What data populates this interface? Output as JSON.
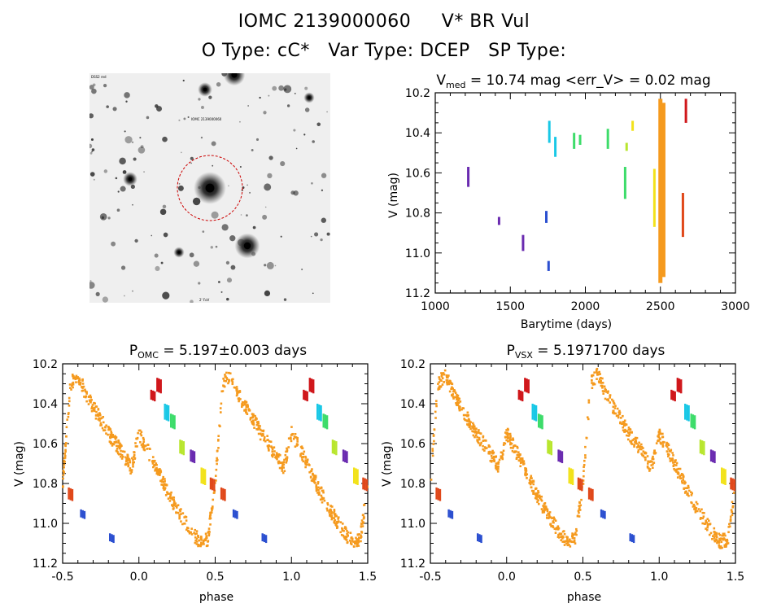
{
  "header": {
    "title_line1": "IOMC 2139000060     V* BR Vul",
    "title_line2": "O Type: cC*   Var Type: DCEP   SP Type:"
  },
  "finder_chart": {
    "label_top_left": "DSS2 red",
    "label_top": "IOMC 2139000060",
    "label_bottom": "2' FoV",
    "circle_color": "#cc0000"
  },
  "colors": {
    "purple": "#6a2bb0",
    "blue": "#2b4fd0",
    "cyan": "#19c8e6",
    "green": "#3ddc6a",
    "yellow_green": "#b8e62e",
    "yellow": "#f2e21b",
    "orange": "#f59a1e",
    "red_orange": "#e0481a",
    "red": "#d0171b"
  },
  "chart_data": [
    {
      "id": "light_curve",
      "type": "scatter",
      "title_main": "V",
      "title_sub": "med",
      "title_rest": " = 10.74 mag <err_V> = 0.02 mag",
      "xlabel": "Barytime (days)",
      "ylabel": "V (mag)",
      "xlim": [
        1000,
        3000
      ],
      "ylim": [
        11.2,
        10.2
      ],
      "xticks": [
        1000,
        1500,
        2000,
        2500,
        3000
      ],
      "xtick_labels": [
        "1000",
        "1500",
        "2000",
        "2500",
        "3000"
      ],
      "yticks": [
        10.2,
        10.4,
        10.6,
        10.8,
        11.0,
        11.2
      ],
      "ytick_labels": [
        "10.2",
        "10.4",
        "10.6",
        "10.8",
        "11.0",
        "11.2"
      ],
      "segments": [
        {
          "x": 1220,
          "y": [
            10.57,
            10.67
          ],
          "color": "purple"
        },
        {
          "x": 1425,
          "y": [
            10.82,
            10.86
          ],
          "color": "purple"
        },
        {
          "x": 1585,
          "y": [
            10.91,
            10.99
          ],
          "color": "purple"
        },
        {
          "x": 1740,
          "y": [
            10.79,
            10.85
          ],
          "color": "blue"
        },
        {
          "x": 1755,
          "y": [
            11.04,
            11.09
          ],
          "color": "blue"
        },
        {
          "x": 1760,
          "y": [
            10.34,
            10.45
          ],
          "color": "cyan"
        },
        {
          "x": 1800,
          "y": [
            10.42,
            10.52
          ],
          "color": "cyan"
        },
        {
          "x": 1925,
          "y": [
            10.4,
            10.48
          ],
          "color": "green"
        },
        {
          "x": 1965,
          "y": [
            10.41,
            10.46
          ],
          "color": "green"
        },
        {
          "x": 2150,
          "y": [
            10.38,
            10.48
          ],
          "color": "green"
        },
        {
          "x": 2265,
          "y": [
            10.57,
            10.73
          ],
          "color": "green"
        },
        {
          "x": 2275,
          "y": [
            10.45,
            10.49
          ],
          "color": "yellow_green"
        },
        {
          "x": 2315,
          "y": [
            10.34,
            10.39
          ],
          "color": "yellow"
        },
        {
          "x": 2460,
          "y": [
            10.58,
            10.87
          ],
          "color": "yellow"
        },
        {
          "x": 2500,
          "y": [
            10.23,
            11.15
          ],
          "color": "orange"
        },
        {
          "x": 2520,
          "y": [
            10.25,
            11.12
          ],
          "color": "orange"
        },
        {
          "x": 2650,
          "y": [
            10.7,
            10.92
          ],
          "color": "red_orange"
        },
        {
          "x": 2670,
          "y": [
            10.23,
            10.35
          ],
          "color": "red"
        }
      ]
    },
    {
      "id": "phase_omc",
      "type": "scatter",
      "title_main": "P",
      "title_sub": "OMC",
      "title_rest": " = 5.197±0.003 days",
      "xlabel": "phase",
      "ylabel": "V (mag)",
      "xlim": [
        -0.5,
        1.5
      ],
      "ylim": [
        11.2,
        10.2
      ],
      "xticks": [
        -0.5,
        0.0,
        0.5,
        1.0,
        1.5
      ],
      "xtick_labels": [
        "-0.5",
        "0.0",
        "0.5",
        "1.0",
        "1.5"
      ],
      "yticks": [
        10.2,
        10.4,
        10.6,
        10.8,
        11.0,
        11.2
      ],
      "ytick_labels": [
        "10.2",
        "10.4",
        "10.6",
        "10.8",
        "11.0",
        "11.2"
      ],
      "curve_phase": [
        0.0,
        0.05,
        0.1,
        0.15,
        0.2,
        0.25,
        0.3,
        0.35,
        0.4,
        0.45,
        0.5,
        0.55,
        0.6,
        0.65,
        0.7,
        0.75,
        0.8,
        0.85,
        0.9,
        0.95,
        1.0
      ],
      "curve_mag": [
        10.55,
        10.62,
        10.7,
        10.78,
        10.86,
        10.93,
        10.99,
        11.05,
        11.09,
        11.08,
        10.8,
        10.3,
        10.25,
        10.35,
        10.42,
        10.48,
        10.55,
        10.6,
        10.66,
        10.72,
        10.55
      ],
      "colored_groups": [
        {
          "phase": 0.09,
          "y": [
            10.33,
            10.38
          ],
          "color": "red"
        },
        {
          "phase": 0.13,
          "y": [
            10.27,
            10.34
          ],
          "color": "red"
        },
        {
          "phase": 0.18,
          "y": [
            10.4,
            10.48
          ],
          "color": "cyan"
        },
        {
          "phase": 0.22,
          "y": [
            10.45,
            10.52
          ],
          "color": "green"
        },
        {
          "phase": 0.28,
          "y": [
            10.58,
            10.65
          ],
          "color": "yellow_green"
        },
        {
          "phase": 0.35,
          "y": [
            10.63,
            10.69
          ],
          "color": "purple"
        },
        {
          "phase": 0.42,
          "y": [
            10.72,
            10.8
          ],
          "color": "yellow"
        },
        {
          "phase": 0.48,
          "y": [
            10.77,
            10.83
          ],
          "color": "red_orange"
        },
        {
          "phase": 0.55,
          "y": [
            10.82,
            10.88
          ],
          "color": "red_orange"
        },
        {
          "phase": 0.63,
          "y": [
            10.93,
            10.97
          ],
          "color": "blue"
        },
        {
          "phase": 0.82,
          "y": [
            11.05,
            11.09
          ],
          "color": "blue"
        }
      ]
    },
    {
      "id": "phase_vsx",
      "type": "scatter",
      "title_main": "P",
      "title_sub": "VSX",
      "title_rest": " = 5.1971700 days",
      "xlabel": "phase",
      "ylabel": "V (mag)",
      "xlim": [
        -0.5,
        1.5
      ],
      "ylim": [
        11.2,
        10.2
      ],
      "xticks": [
        -0.5,
        0.0,
        0.5,
        1.0,
        1.5
      ],
      "xtick_labels": [
        "-0.5",
        "0.0",
        "0.5",
        "1.0",
        "1.5"
      ],
      "yticks": [
        10.2,
        10.4,
        10.6,
        10.8,
        11.0,
        11.2
      ],
      "ytick_labels": [
        "10.2",
        "10.4",
        "10.6",
        "10.8",
        "11.0",
        "11.2"
      ],
      "curve_phase": [
        0.0,
        0.05,
        0.1,
        0.15,
        0.2,
        0.25,
        0.3,
        0.35,
        0.4,
        0.45,
        0.5,
        0.55,
        0.6,
        0.65,
        0.7,
        0.75,
        0.8,
        0.85,
        0.9,
        0.95,
        1.0
      ],
      "curve_mag": [
        10.55,
        10.62,
        10.7,
        10.78,
        10.86,
        10.93,
        10.99,
        11.05,
        11.09,
        11.08,
        10.8,
        10.3,
        10.25,
        10.35,
        10.42,
        10.48,
        10.55,
        10.6,
        10.66,
        10.72,
        10.55
      ],
      "colored_groups": [
        {
          "phase": 0.09,
          "y": [
            10.33,
            10.38
          ],
          "color": "red"
        },
        {
          "phase": 0.13,
          "y": [
            10.27,
            10.34
          ],
          "color": "red"
        },
        {
          "phase": 0.18,
          "y": [
            10.4,
            10.48
          ],
          "color": "cyan"
        },
        {
          "phase": 0.22,
          "y": [
            10.45,
            10.52
          ],
          "color": "green"
        },
        {
          "phase": 0.28,
          "y": [
            10.58,
            10.65
          ],
          "color": "yellow_green"
        },
        {
          "phase": 0.35,
          "y": [
            10.63,
            10.69
          ],
          "color": "purple"
        },
        {
          "phase": 0.42,
          "y": [
            10.72,
            10.8
          ],
          "color": "yellow"
        },
        {
          "phase": 0.48,
          "y": [
            10.77,
            10.83
          ],
          "color": "red_orange"
        },
        {
          "phase": 0.55,
          "y": [
            10.82,
            10.88
          ],
          "color": "red_orange"
        },
        {
          "phase": 0.63,
          "y": [
            10.93,
            10.97
          ],
          "color": "blue"
        },
        {
          "phase": 0.82,
          "y": [
            11.05,
            11.09
          ],
          "color": "blue"
        }
      ]
    }
  ]
}
